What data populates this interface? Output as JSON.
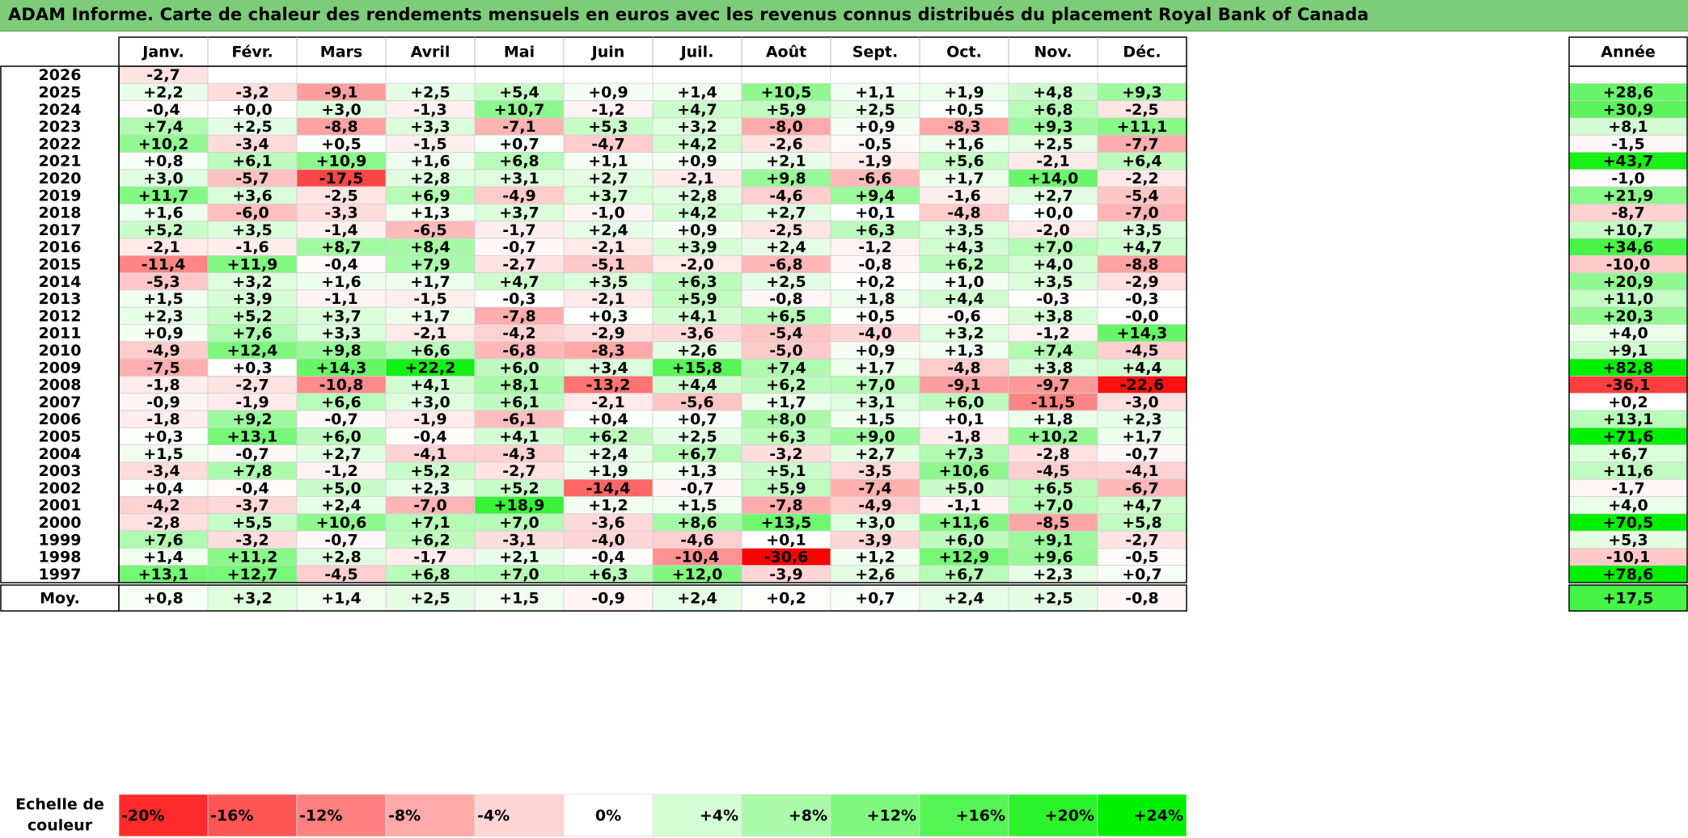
{
  "title": "ADAM Informe. Carte de chaleur des rendements mensuels en euros avec les revenus connus distribués du placement Royal Bank of Canada",
  "chart_data": {
    "type": "heatmap",
    "columns": [
      "Janv.",
      "Févr.",
      "Mars",
      "Avril",
      "Mai",
      "Juin",
      "Juil.",
      "Août",
      "Sept.",
      "Oct.",
      "Nov.",
      "Déc."
    ],
    "year_header": "Année",
    "rows": [
      {
        "label": "2026",
        "values": [
          "-2,7",
          "",
          "",
          "",
          "",
          "",
          "",
          "",
          "",
          "",
          "",
          ""
        ],
        "annual": ""
      },
      {
        "label": "2025",
        "values": [
          "+2,2",
          "-3,2",
          "-9,1",
          "+2,5",
          "+5,4",
          "+0,9",
          "+1,4",
          "+10,5",
          "+1,1",
          "+1,9",
          "+4,8",
          "+9,3"
        ],
        "annual": "+28,6"
      },
      {
        "label": "2024",
        "values": [
          "-0,4",
          "+0,0",
          "+3,0",
          "-1,3",
          "+10,7",
          "-1,2",
          "+4,7",
          "+5,9",
          "+2,5",
          "+0,5",
          "+6,8",
          "-2,5"
        ],
        "annual": "+30,9"
      },
      {
        "label": "2023",
        "values": [
          "+7,4",
          "+2,5",
          "-8,8",
          "+3,3",
          "-7,1",
          "+5,3",
          "+3,2",
          "-8,0",
          "+0,9",
          "-8,3",
          "+9,3",
          "+11,1"
        ],
        "annual": "+8,1"
      },
      {
        "label": "2022",
        "values": [
          "+10,2",
          "-3,4",
          "+0,5",
          "-1,5",
          "+0,7",
          "-4,7",
          "+4,2",
          "-2,6",
          "-0,5",
          "+1,6",
          "+2,5",
          "-7,7"
        ],
        "annual": "-1,5"
      },
      {
        "label": "2021",
        "values": [
          "+0,8",
          "+6,1",
          "+10,9",
          "+1,6",
          "+6,8",
          "+1,1",
          "+0,9",
          "+2,1",
          "-1,9",
          "+5,6",
          "-2,1",
          "+6,4"
        ],
        "annual": "+43,7"
      },
      {
        "label": "2020",
        "values": [
          "+3,0",
          "-5,7",
          "-17,5",
          "+2,8",
          "+3,1",
          "+2,7",
          "-2,1",
          "+9,8",
          "-6,6",
          "+1,7",
          "+14,0",
          "-2,2"
        ],
        "annual": "-1,0"
      },
      {
        "label": "2019",
        "values": [
          "+11,7",
          "+3,6",
          "-2,5",
          "+6,9",
          "-4,9",
          "+3,7",
          "+2,8",
          "-4,6",
          "+9,4",
          "-1,6",
          "+2,7",
          "-5,4"
        ],
        "annual": "+21,9"
      },
      {
        "label": "2018",
        "values": [
          "+1,6",
          "-6,0",
          "-3,3",
          "+1,3",
          "+3,7",
          "-1,0",
          "+4,2",
          "+2,7",
          "+0,1",
          "-4,8",
          "+0,0",
          "-7,0"
        ],
        "annual": "-8,7"
      },
      {
        "label": "2017",
        "values": [
          "+5,2",
          "+3,5",
          "-1,4",
          "-6,5",
          "-1,7",
          "+2,4",
          "+0,9",
          "-2,5",
          "+6,3",
          "+3,5",
          "-2,0",
          "+3,5"
        ],
        "annual": "+10,7"
      },
      {
        "label": "2016",
        "values": [
          "-2,1",
          "-1,6",
          "+8,7",
          "+8,4",
          "-0,7",
          "-2,1",
          "+3,9",
          "+2,4",
          "-1,2",
          "+4,3",
          "+7,0",
          "+4,7"
        ],
        "annual": "+34,6"
      },
      {
        "label": "2015",
        "values": [
          "-11,4",
          "+11,9",
          "-0,4",
          "+7,9",
          "-2,7",
          "-5,1",
          "-2,0",
          "-6,8",
          "-0,8",
          "+6,2",
          "+4,0",
          "-8,8"
        ],
        "annual": "-10,0"
      },
      {
        "label": "2014",
        "values": [
          "-5,3",
          "+3,2",
          "+1,6",
          "+1,7",
          "+4,7",
          "+3,5",
          "+6,3",
          "+2,5",
          "+0,2",
          "+1,0",
          "+3,5",
          "-2,9"
        ],
        "annual": "+20,9"
      },
      {
        "label": "2013",
        "values": [
          "+1,5",
          "+3,9",
          "-1,1",
          "-1,5",
          "-0,3",
          "-2,1",
          "+5,9",
          "-0,8",
          "+1,8",
          "+4,4",
          "-0,3",
          "-0,3"
        ],
        "annual": "+11,0"
      },
      {
        "label": "2012",
        "values": [
          "+2,3",
          "+5,2",
          "+3,7",
          "+1,7",
          "-7,8",
          "+0,3",
          "+4,1",
          "+6,5",
          "+0,5",
          "-0,6",
          "+3,8",
          "-0,0"
        ],
        "annual": "+20,3"
      },
      {
        "label": "2011",
        "values": [
          "+0,9",
          "+7,6",
          "+3,3",
          "-2,1",
          "-4,2",
          "-2,9",
          "-3,6",
          "-5,4",
          "-4,0",
          "+3,2",
          "-1,2",
          "+14,3"
        ],
        "annual": "+4,0"
      },
      {
        "label": "2010",
        "values": [
          "-4,9",
          "+12,4",
          "+9,8",
          "+6,6",
          "-6,8",
          "-8,3",
          "+2,6",
          "-5,0",
          "+0,9",
          "+1,3",
          "+7,4",
          "-4,5"
        ],
        "annual": "+9,1"
      },
      {
        "label": "2009",
        "values": [
          "-7,5",
          "+0,3",
          "+14,3",
          "+22,2",
          "+6,0",
          "+3,4",
          "+15,8",
          "+7,4",
          "+1,7",
          "-4,8",
          "+3,8",
          "+4,4"
        ],
        "annual": "+82,8"
      },
      {
        "label": "2008",
        "values": [
          "-1,8",
          "-2,7",
          "-10,8",
          "+4,1",
          "+8,1",
          "-13,2",
          "+4,4",
          "+6,2",
          "+7,0",
          "-9,1",
          "-9,7",
          "-22,6"
        ],
        "annual": "-36,1"
      },
      {
        "label": "2007",
        "values": [
          "-0,9",
          "-1,9",
          "+6,6",
          "+3,0",
          "+6,1",
          "-2,1",
          "-5,6",
          "+1,7",
          "+3,1",
          "+6,0",
          "-11,5",
          "-3,0"
        ],
        "annual": "+0,2"
      },
      {
        "label": "2006",
        "values": [
          "-1,8",
          "+9,2",
          "-0,7",
          "-1,9",
          "-6,1",
          "+0,4",
          "+0,7",
          "+8,0",
          "+1,5",
          "+0,1",
          "+1,8",
          "+2,3"
        ],
        "annual": "+13,1"
      },
      {
        "label": "2005",
        "values": [
          "+0,3",
          "+13,1",
          "+6,0",
          "-0,4",
          "+4,1",
          "+6,2",
          "+2,5",
          "+6,3",
          "+9,0",
          "-1,8",
          "+10,2",
          "+1,7"
        ],
        "annual": "+71,6"
      },
      {
        "label": "2004",
        "values": [
          "+1,5",
          "-0,7",
          "+2,7",
          "-4,1",
          "-4,3",
          "+2,4",
          "+6,7",
          "-3,2",
          "+2,7",
          "+7,3",
          "-2,8",
          "-0,7"
        ],
        "annual": "+6,7"
      },
      {
        "label": "2003",
        "values": [
          "-3,4",
          "+7,8",
          "-1,2",
          "+5,2",
          "-2,7",
          "+1,9",
          "+1,3",
          "+5,1",
          "-3,5",
          "+10,6",
          "-4,5",
          "-4,1"
        ],
        "annual": "+11,6"
      },
      {
        "label": "2002",
        "values": [
          "+0,4",
          "-0,4",
          "+5,0",
          "+2,3",
          "+5,2",
          "-14,4",
          "-0,7",
          "+5,9",
          "-7,4",
          "+5,0",
          "+6,5",
          "-6,7"
        ],
        "annual": "-1,7"
      },
      {
        "label": "2001",
        "values": [
          "-4,2",
          "-3,7",
          "+2,4",
          "-7,0",
          "+18,9",
          "+1,2",
          "+1,5",
          "-7,8",
          "-4,9",
          "-1,1",
          "+7,0",
          "+4,7"
        ],
        "annual": "+4,0"
      },
      {
        "label": "2000",
        "values": [
          "-2,8",
          "+5,5",
          "+10,6",
          "+7,1",
          "+7,0",
          "-3,6",
          "+8,6",
          "+13,5",
          "+3,0",
          "+11,6",
          "-8,5",
          "+5,8"
        ],
        "annual": "+70,5"
      },
      {
        "label": "1999",
        "values": [
          "+7,6",
          "-3,2",
          "-0,7",
          "+6,2",
          "-3,1",
          "-4,0",
          "-4,6",
          "+0,1",
          "-3,9",
          "+6,0",
          "+9,1",
          "-2,7"
        ],
        "annual": "+5,3"
      },
      {
        "label": "1998",
        "values": [
          "+1,4",
          "+11,2",
          "+2,8",
          "-1,7",
          "+2,1",
          "-0,4",
          "-10,4",
          "-30,6",
          "+1,2",
          "+12,9",
          "+9,6",
          "-0,5"
        ],
        "annual": "-10,1"
      },
      {
        "label": "1997",
        "values": [
          "+13,1",
          "+12,7",
          "-4,5",
          "+6,8",
          "+7,0",
          "+6,3",
          "+12,0",
          "-3,9",
          "+2,6",
          "+6,7",
          "+2,3",
          "+0,7"
        ],
        "annual": "+78,6"
      }
    ],
    "average": {
      "label": "Moy.",
      "values": [
        "+0,8",
        "+3,2",
        "+1,4",
        "+2,5",
        "+1,5",
        "-0,9",
        "+2,4",
        "+0,2",
        "+0,7",
        "+2,4",
        "+2,5",
        "-0,8"
      ],
      "annual": "+17,5"
    },
    "scale": {
      "label_line1": "Echelle de",
      "label_line2": "couleur",
      "items": [
        {
          "text": "-20%",
          "value": -20
        },
        {
          "text": "-16%",
          "value": -16
        },
        {
          "text": "-12%",
          "value": -12
        },
        {
          "text": "-8%",
          "value": -8
        },
        {
          "text": "-4%",
          "value": -4
        },
        {
          "text": "0%",
          "value": 0
        },
        {
          "text": "+4%",
          "value": 4
        },
        {
          "text": "+8%",
          "value": 8
        },
        {
          "text": "+12%",
          "value": 12
        },
        {
          "text": "+16%",
          "value": 16
        },
        {
          "text": "+20%",
          "value": 20
        },
        {
          "text": "+24%",
          "value": 24
        }
      ]
    }
  }
}
